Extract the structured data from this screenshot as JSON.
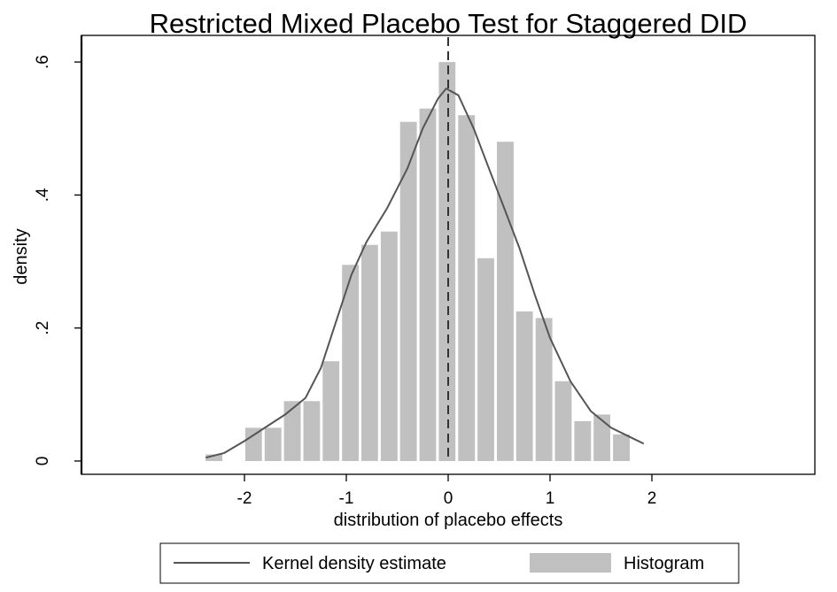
{
  "chart_data": {
    "type": "bar",
    "title": "Restricted Mixed Placebo Test for Staggered DID",
    "xlabel": "distribution of placebo effects",
    "ylabel": "density",
    "xlim": [
      -3.6,
      3.6
    ],
    "ylim": [
      -0.02,
      0.64
    ],
    "x_ticks": [
      -2,
      -1,
      0,
      1,
      2
    ],
    "x_tick_labels": [
      "-2",
      "-1",
      "0",
      "1",
      "2"
    ],
    "y_ticks": [
      0,
      0.2,
      0.4,
      0.6
    ],
    "y_tick_labels": [
      "0",
      ".2",
      ".4",
      ".6"
    ],
    "grid": false,
    "legend_position": "bottom",
    "reference_line": {
      "x": 0,
      "style": "dashed"
    },
    "bar_color": "#c0c0c0",
    "line_color": "#555555",
    "series": [
      {
        "name": "Histogram",
        "kind": "bar",
        "bin_width": 0.19,
        "bins": [
          {
            "x": -2.3,
            "y": 0.01
          },
          {
            "x": -1.91,
            "y": 0.05
          },
          {
            "x": -1.72,
            "y": 0.05
          },
          {
            "x": -1.53,
            "y": 0.09
          },
          {
            "x": -1.34,
            "y": 0.09
          },
          {
            "x": -1.15,
            "y": 0.15
          },
          {
            "x": -0.96,
            "y": 0.295
          },
          {
            "x": -0.77,
            "y": 0.325
          },
          {
            "x": -0.58,
            "y": 0.345
          },
          {
            "x": -0.39,
            "y": 0.51
          },
          {
            "x": -0.2,
            "y": 0.53
          },
          {
            "x": -0.01,
            "y": 0.6
          },
          {
            "x": 0.18,
            "y": 0.52
          },
          {
            "x": 0.37,
            "y": 0.305
          },
          {
            "x": 0.56,
            "y": 0.48
          },
          {
            "x": 0.75,
            "y": 0.225
          },
          {
            "x": 0.94,
            "y": 0.215
          },
          {
            "x": 1.13,
            "y": 0.12
          },
          {
            "x": 1.32,
            "y": 0.06
          },
          {
            "x": 1.51,
            "y": 0.07
          },
          {
            "x": 1.7,
            "y": 0.04
          }
        ]
      },
      {
        "name": "Kernel density estimate",
        "kind": "line",
        "points": [
          [
            -2.38,
            0.005
          ],
          [
            -2.2,
            0.012
          ],
          [
            -2.0,
            0.03
          ],
          [
            -1.8,
            0.05
          ],
          [
            -1.6,
            0.07
          ],
          [
            -1.4,
            0.095
          ],
          [
            -1.25,
            0.14
          ],
          [
            -1.1,
            0.21
          ],
          [
            -0.95,
            0.28
          ],
          [
            -0.8,
            0.33
          ],
          [
            -0.6,
            0.38
          ],
          [
            -0.4,
            0.44
          ],
          [
            -0.25,
            0.5
          ],
          [
            -0.1,
            0.545
          ],
          [
            -0.02,
            0.56
          ],
          [
            0.1,
            0.55
          ],
          [
            0.25,
            0.5
          ],
          [
            0.4,
            0.44
          ],
          [
            0.55,
            0.38
          ],
          [
            0.7,
            0.32
          ],
          [
            0.85,
            0.25
          ],
          [
            1.0,
            0.185
          ],
          [
            1.2,
            0.12
          ],
          [
            1.4,
            0.075
          ],
          [
            1.6,
            0.05
          ],
          [
            1.8,
            0.035
          ],
          [
            1.92,
            0.026
          ]
        ]
      }
    ]
  }
}
